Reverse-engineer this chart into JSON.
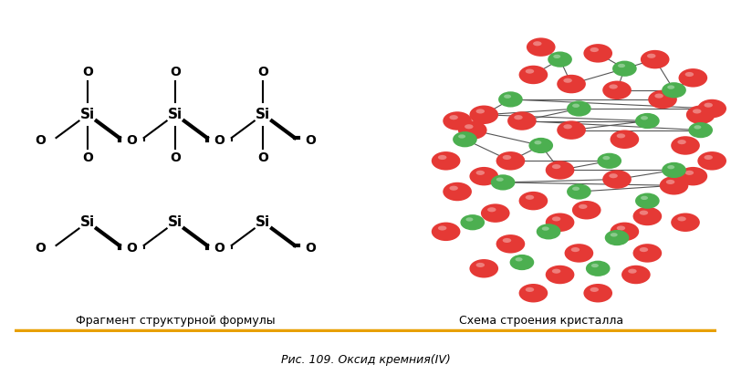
{
  "title_caption": "Рис. 109. Оксид кремния(IV)",
  "left_caption": "Фрагмент структурной формулы",
  "right_caption": "Схема строения кристалла",
  "separator_color": "#E8A000",
  "background_color": "#FFFFFF",
  "si_color": "#000000",
  "o_color": "#000000",
  "ball_si_color": "#4CAF50",
  "ball_o_color": "#E53935",
  "caption_fontsize": 9,
  "label_fontsize": 10,
  "fig_caption_fontsize": 9
}
